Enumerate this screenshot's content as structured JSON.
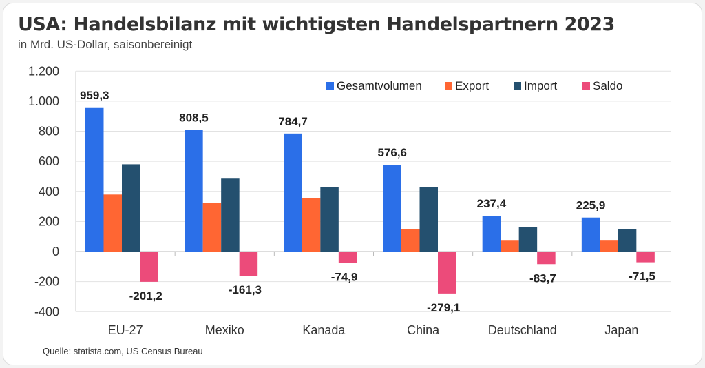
{
  "title": "USA: Handelsbilanz mit wichtigsten Handelspartnern 2023",
  "subtitle": "in Mrd. US-Dollar, saisonbereinigt",
  "source": "Quelle: statista.com, US Census Bureau",
  "chart_data": {
    "type": "bar",
    "title": "USA: Handelsbilanz mit wichtigsten Handelspartnern 2023",
    "ylabel": "in Mrd. US-Dollar",
    "ylim": [
      -400,
      1200
    ],
    "yticks": [
      -400,
      -200,
      0,
      200,
      400,
      600,
      800,
      1000,
      1200
    ],
    "ytick_labels": [
      "-400",
      "-200",
      "0",
      "200",
      "400",
      "600",
      "800",
      "1.000",
      "1.200"
    ],
    "grid": true,
    "legend": "top-right",
    "categories": [
      "EU-27",
      "Mexiko",
      "Kanada",
      "China",
      "Deutschland",
      "Japan"
    ],
    "series": [
      {
        "name": "Gesamtvolumen",
        "color": "#2b6fe8",
        "values": [
          959.3,
          808.5,
          784.7,
          576.6,
          237.4,
          225.9
        ],
        "labels": [
          "959,3",
          "808,5",
          "784,7",
          "576,6",
          "237,4",
          "225,9"
        ]
      },
      {
        "name": "Export",
        "color": "#ff6633",
        "values": [
          379.1,
          323.6,
          354.9,
          148.8,
          76.9,
          77.2
        ]
      },
      {
        "name": "Import",
        "color": "#24506f",
        "values": [
          580.3,
          484.9,
          429.8,
          427.9,
          160.6,
          148.7
        ]
      },
      {
        "name": "Saldo",
        "color": "#ec4b7a",
        "values": [
          -201.2,
          -161.3,
          -74.9,
          -279.1,
          -83.7,
          -71.5
        ],
        "labels": [
          "-201,2",
          "-161,3",
          "-74,9",
          "-279,1",
          "-83,7",
          "-71,5"
        ]
      }
    ]
  }
}
